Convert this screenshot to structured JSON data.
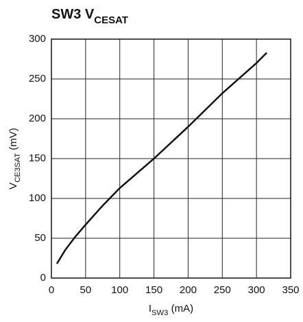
{
  "chart_data": {
    "type": "line",
    "title": [
      {
        "text": "SW3 V"
      },
      {
        "text": "CESAT",
        "sub": true
      }
    ],
    "x_label": [
      {
        "text": "I"
      },
      {
        "text": "SW3",
        "sub": true
      },
      {
        "text": " (mA)"
      }
    ],
    "y_label": [
      {
        "text": "V"
      },
      {
        "text": "CE3SAT",
        "sub": true
      },
      {
        "text": " (mV)"
      }
    ],
    "x": [
      8,
      20,
      35,
      50,
      75,
      100,
      150,
      200,
      250,
      300,
      315
    ],
    "series": [
      {
        "color": "#111111",
        "values": [
          18,
          35,
          52,
          67,
          91,
          113,
          150,
          190,
          232,
          270,
          283
        ]
      }
    ],
    "xlim": [
      0,
      350
    ],
    "xticks": [
      0,
      50,
      100,
      150,
      200,
      250,
      300,
      350
    ],
    "ylim": [
      0,
      300
    ],
    "yticks": [
      0,
      50,
      100,
      150,
      200,
      250,
      300
    ],
    "grid": true
  }
}
